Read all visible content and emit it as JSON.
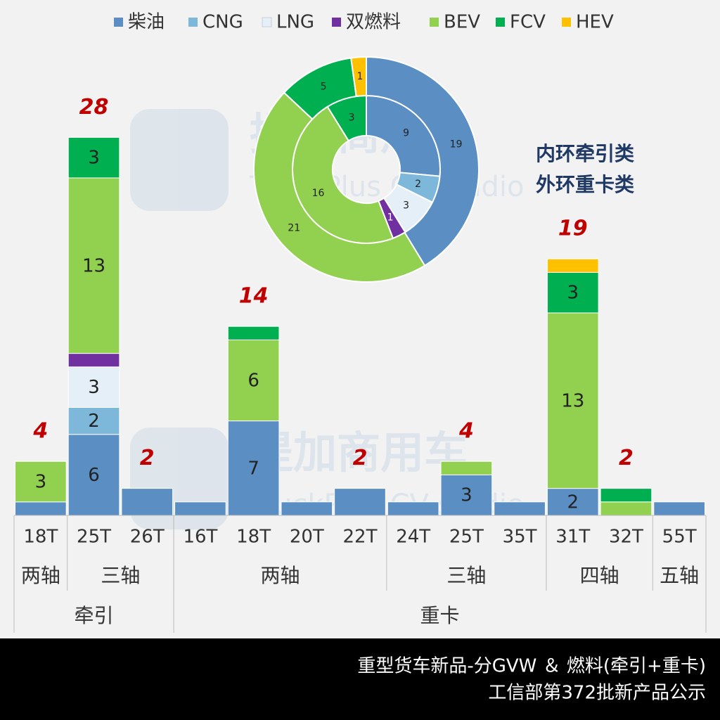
{
  "chart_data": [
    {
      "type": "stacked-bar",
      "categories": [
        [
          "牵引",
          "两轴",
          "18T"
        ],
        [
          "牵引",
          "三轴",
          "25T"
        ],
        [
          "牵引",
          "三轴",
          "26T"
        ],
        [
          "重卡",
          "两轴",
          "16T"
        ],
        [
          "重卡",
          "两轴",
          "18T"
        ],
        [
          "重卡",
          "两轴",
          "20T"
        ],
        [
          "重卡",
          "两轴",
          "22T"
        ],
        [
          "重卡",
          "三轴",
          "24T"
        ],
        [
          "重卡",
          "三轴",
          "25T"
        ],
        [
          "重卡",
          "三轴",
          "35T"
        ],
        [
          "重卡",
          "四轴",
          "31T"
        ],
        [
          "重卡",
          "四轴",
          "32T"
        ],
        [
          "重卡",
          "五轴",
          "55T"
        ]
      ],
      "series": [
        {
          "name": "柴油",
          "color": "#5b8fc4",
          "values": [
            1,
            6,
            2,
            1,
            7,
            1,
            2,
            1,
            3,
            1,
            2,
            0,
            1
          ]
        },
        {
          "name": "CNG",
          "color": "#7db8da",
          "values": [
            0,
            2,
            0,
            0,
            0,
            0,
            0,
            0,
            0,
            0,
            0,
            0,
            0
          ]
        },
        {
          "name": "LNG",
          "color": "#e4eff7",
          "values": [
            0,
            3,
            0,
            0,
            0,
            0,
            0,
            0,
            0,
            0,
            0,
            0,
            0
          ]
        },
        {
          "name": "双燃料",
          "color": "#7030a0",
          "values": [
            0,
            1,
            0,
            0,
            0,
            0,
            0,
            0,
            0,
            0,
            0,
            0,
            0
          ]
        },
        {
          "name": "BEV",
          "color": "#92d050",
          "values": [
            3,
            13,
            0,
            0,
            6,
            0,
            0,
            0,
            1,
            0,
            13,
            1,
            0
          ]
        },
        {
          "name": "FCV",
          "color": "#00b050",
          "values": [
            0,
            3,
            0,
            0,
            1,
            0,
            0,
            0,
            0,
            0,
            3,
            1,
            0
          ]
        },
        {
          "name": "HEV",
          "color": "#ffc000",
          "values": [
            0,
            0,
            0,
            0,
            0,
            0,
            0,
            0,
            0,
            0,
            1,
            0,
            0
          ]
        }
      ],
      "totals": [
        4,
        28,
        2,
        null,
        14,
        null,
        2,
        null,
        4,
        null,
        19,
        2,
        null
      ],
      "legend": "top"
    },
    {
      "type": "doughnut",
      "series": [
        {
          "name": "内环牵引类",
          "values": [
            9,
            2,
            3,
            1,
            16,
            3,
            0
          ]
        },
        {
          "name": "外环重卡类",
          "values": [
            19,
            0,
            0,
            0,
            21,
            5,
            1
          ]
        }
      ]
    }
  ],
  "watermark": [
    "提加商用车",
    "TruckPlus CV studio"
  ],
  "footer": [
    "重型货车新品-分GVW ＆ 燃料(牵引+重卡)",
    "工信部第372批新产品公示"
  ]
}
